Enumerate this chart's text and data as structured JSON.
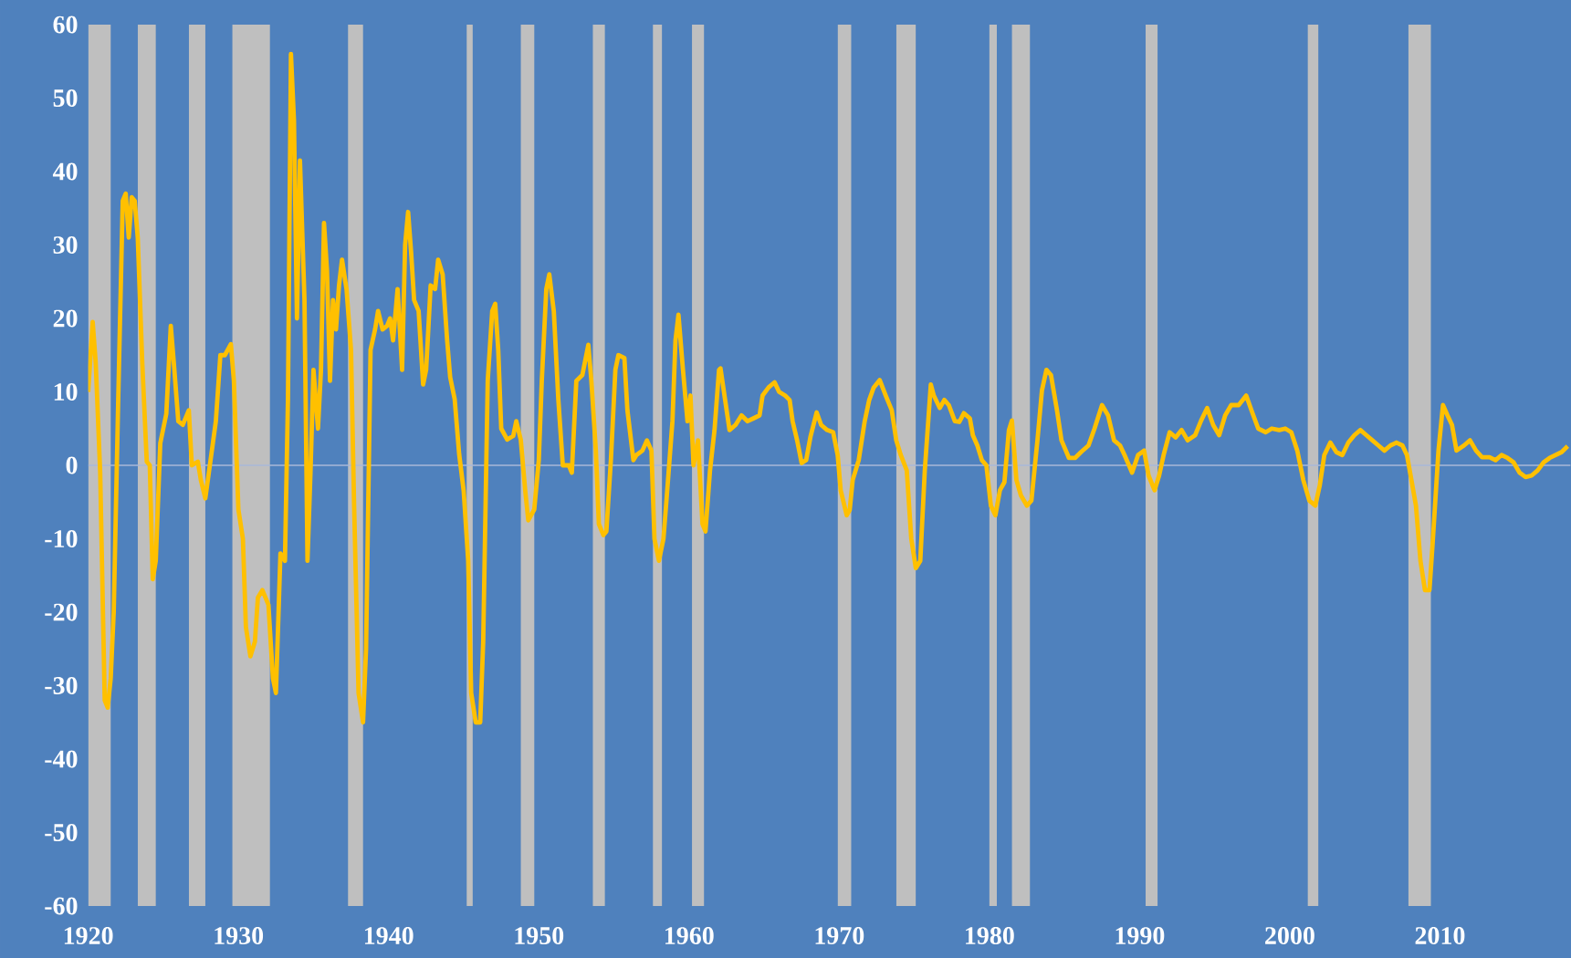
{
  "chart_data": {
    "type": "line",
    "x": [
      1920.0,
      1920.3,
      1920.5,
      1920.8,
      1921.1,
      1921.3,
      1921.5,
      1921.7,
      1922.0,
      1922.3,
      1922.5,
      1922.7,
      1922.9,
      1923.1,
      1923.3,
      1923.6,
      1923.9,
      1924.1,
      1924.3,
      1924.5,
      1924.8,
      1925.2,
      1925.5,
      1925.7,
      1926.0,
      1926.3,
      1926.7,
      1926.9,
      1927.3,
      1927.5,
      1927.8,
      1928.1,
      1928.5,
      1928.8,
      1929.1,
      1929.5,
      1929.7,
      1930.0,
      1930.3,
      1930.5,
      1930.8,
      1931.1,
      1931.3,
      1931.6,
      1932.0,
      1932.3,
      1932.5,
      1932.8,
      1933.1,
      1933.3,
      1933.5,
      1933.7,
      1933.9,
      1934.1,
      1934.4,
      1934.6,
      1934.8,
      1935.0,
      1935.3,
      1935.5,
      1935.7,
      1935.9,
      1936.1,
      1936.3,
      1936.5,
      1936.7,
      1936.9,
      1937.2,
      1937.5,
      1937.7,
      1938.0,
      1938.3,
      1938.5,
      1938.8,
      1939.1,
      1939.3,
      1939.6,
      1939.9,
      1940.1,
      1940.3,
      1940.6,
      1940.9,
      1941.1,
      1941.3,
      1941.5,
      1941.7,
      1942.0,
      1942.3,
      1942.5,
      1942.8,
      1943.1,
      1943.3,
      1943.6,
      1943.9,
      1944.1,
      1944.4,
      1944.7,
      1945.0,
      1945.3,
      1945.5,
      1945.8,
      1946.1,
      1946.3,
      1946.6,
      1946.9,
      1947.1,
      1947.3,
      1947.5,
      1947.9,
      1948.3,
      1948.5,
      1948.8,
      1949.1,
      1949.3,
      1949.7,
      1950.0,
      1950.2,
      1950.5,
      1950.7,
      1951.0,
      1951.3,
      1951.6,
      1952.0,
      1952.2,
      1952.5,
      1952.9,
      1953.3,
      1953.5,
      1953.8,
      1954.0,
      1954.3,
      1954.5,
      1954.8,
      1955.1,
      1955.3,
      1955.7,
      1955.9,
      1956.3,
      1956.5,
      1956.9,
      1957.2,
      1957.5,
      1957.7,
      1958.0,
      1958.3,
      1958.5,
      1958.9,
      1959.1,
      1959.3,
      1959.6,
      1959.9,
      1960.1,
      1960.3,
      1960.6,
      1960.9,
      1961.1,
      1961.4,
      1961.7,
      1962.0,
      1962.1,
      1962.4,
      1962.7,
      1963.1,
      1963.5,
      1963.9,
      1964.3,
      1964.7,
      1964.9,
      1965.3,
      1965.7,
      1966.0,
      1966.4,
      1966.7,
      1966.9,
      1967.2,
      1967.5,
      1967.8,
      1968.1,
      1968.5,
      1968.8,
      1969.2,
      1969.6,
      1969.9,
      1970.1,
      1970.5,
      1970.7,
      1970.9,
      1971.3,
      1971.7,
      1972.0,
      1972.3,
      1972.7,
      1973.1,
      1973.5,
      1973.8,
      1974.1,
      1974.5,
      1974.8,
      1975.1,
      1975.4,
      1975.7,
      1976.1,
      1976.3,
      1976.7,
      1977.0,
      1977.3,
      1977.7,
      1978.0,
      1978.3,
      1978.7,
      1978.9,
      1979.2,
      1979.5,
      1979.8,
      1980.1,
      1980.4,
      1980.7,
      1981.0,
      1981.3,
      1981.5,
      1981.8,
      1982.1,
      1982.5,
      1982.8,
      1983.2,
      1983.5,
      1983.8,
      1984.1,
      1984.5,
      1984.8,
      1985.3,
      1985.7,
      1986.1,
      1986.6,
      1987.0,
      1987.5,
      1987.9,
      1988.3,
      1988.7,
      1989.0,
      1989.5,
      1989.9,
      1990.3,
      1990.6,
      1991.0,
      1991.3,
      1991.6,
      1992.0,
      1992.4,
      1992.8,
      1993.2,
      1993.7,
      1994.1,
      1994.5,
      1994.9,
      1995.3,
      1995.7,
      1996.1,
      1996.6,
      1997.1,
      1997.5,
      1997.9,
      1998.4,
      1998.8,
      1999.3,
      1999.7,
      2000.1,
      2000.5,
      2000.9,
      2001.3,
      2001.7,
      2002.0,
      2002.3,
      2002.7,
      2003.1,
      2003.5,
      2003.9,
      2004.3,
      2004.7,
      2005.1,
      2005.5,
      2005.9,
      2006.3,
      2006.7,
      2007.1,
      2007.5,
      2007.8,
      2008.1,
      2008.4,
      2008.7,
      2009.0,
      2009.3,
      2009.5,
      2009.9,
      2010.2,
      2010.5,
      2010.8,
      2011.1,
      2011.6,
      2012.0,
      2012.4,
      2012.8,
      2013.3,
      2013.7,
      2014.1,
      2014.5,
      2014.9,
      2015.3,
      2015.7,
      2016.1,
      2016.5,
      2016.9,
      2017.3,
      2017.7,
      2018.1,
      2018.5
    ],
    "series": [
      {
        "color": "#ffc000",
        "values": [
          10,
          19.5,
          14,
          -1,
          -32,
          -33,
          -29,
          -20,
          9,
          36,
          37,
          31,
          36.5,
          36,
          31,
          14,
          0.5,
          0,
          -15.5,
          -13,
          3,
          7,
          19,
          14,
          6,
          5.5,
          7.5,
          0,
          0.5,
          -2,
          -4.5,
          0,
          6,
          15,
          15,
          16.5,
          11.5,
          -6,
          -10,
          -22,
          -26,
          -24,
          -18,
          -17,
          -19,
          -29,
          -31,
          -12,
          -13,
          9,
          56,
          47,
          20,
          41.5,
          22.5,
          -13,
          -1,
          13,
          5,
          13,
          33,
          26.5,
          11.5,
          22.5,
          18.5,
          24.5,
          28,
          24,
          15.7,
          -5,
          -31,
          -35,
          -25,
          15.7,
          18.5,
          21,
          18.5,
          19,
          20,
          17,
          24,
          13,
          30,
          34.5,
          29,
          22.5,
          21,
          11,
          13,
          24.5,
          24,
          28,
          26,
          17,
          12,
          9,
          1.5,
          -3.5,
          -13,
          -31,
          -35,
          -35,
          -24,
          11.5,
          21,
          22,
          15.7,
          5,
          3.5,
          4,
          6,
          3.5,
          -3.5,
          -7.5,
          -6,
          0.7,
          11.5,
          24,
          26,
          21,
          9,
          0,
          0,
          -1,
          11.5,
          12.3,
          16.4,
          11.5,
          2,
          -8,
          -9.5,
          -9,
          0.7,
          13,
          15,
          14.6,
          7.5,
          0.7,
          1.4,
          2,
          3.4,
          2,
          -10,
          -13,
          -10,
          -4.8,
          6,
          17,
          20.5,
          13,
          6,
          9.5,
          0,
          3.4,
          -8,
          -9,
          -0.7,
          4.8,
          13,
          13.2,
          9,
          4.8,
          5.5,
          6.8,
          6,
          6.4,
          6.8,
          9.5,
          10.6,
          11.3,
          10,
          9.5,
          8.9,
          6,
          3.4,
          0.3,
          0.7,
          4,
          7.2,
          5.5,
          4.8,
          4.5,
          1.4,
          -3.4,
          -6.8,
          -6.1,
          -2,
          0.7,
          6,
          8.9,
          10.6,
          11.6,
          9.5,
          7.5,
          3.4,
          1.4,
          -0.7,
          -10,
          -14,
          -13,
          -0.7,
          11,
          9.5,
          7.8,
          8.9,
          8.2,
          6,
          5.9,
          7.1,
          6.4,
          4.1,
          2.7,
          0.7,
          0,
          -5.5,
          -6.8,
          -3.4,
          -2.3,
          4.8,
          6.1,
          -2,
          -4.1,
          -5.5,
          -4.8,
          3.4,
          10.2,
          13,
          12.3,
          7.5,
          3.4,
          1,
          1,
          1.8,
          2.7,
          5,
          8.2,
          6.8,
          3.4,
          2.7,
          1.4,
          -1,
          1.4,
          2,
          -1.4,
          -3.4,
          -1.4,
          1.4,
          4.5,
          3.8,
          4.8,
          3.4,
          4.1,
          6.1,
          7.8,
          5.5,
          4.1,
          6.8,
          8.2,
          8.2,
          9.5,
          7.2,
          5,
          4.5,
          5,
          4.8,
          5,
          4.5,
          2,
          -2,
          -4.8,
          -5.5,
          -2.7,
          1.4,
          3.1,
          1.8,
          1.4,
          3.1,
          4.1,
          4.8,
          4.1,
          3.4,
          2.7,
          2,
          2.7,
          3.1,
          2.7,
          1.4,
          -2,
          -5.5,
          -13,
          -17,
          -17,
          -11,
          2,
          8.2,
          6.8,
          5.5,
          2,
          2.7,
          3.4,
          2,
          1.1,
          1.1,
          0.7,
          1.4,
          1,
          0.4,
          -1,
          -1.6,
          -1.4,
          -0.7,
          0.4,
          1,
          1.4,
          1.8,
          2.6
        ]
      }
    ],
    "xlim": [
      1920,
      2018.7
    ],
    "ylim": [
      -60,
      60
    ],
    "xticks": [
      1920,
      1930,
      1940,
      1950,
      1960,
      1970,
      1980,
      1990,
      2000,
      2010
    ],
    "yticks": [
      -60,
      -50,
      -40,
      -30,
      -20,
      -10,
      0,
      10,
      20,
      30,
      40,
      50,
      60
    ],
    "marker": "none",
    "line_style": "solid",
    "ref_lines": [
      {
        "axis": "y",
        "value": 0,
        "color": "#a9b8d8"
      }
    ],
    "bands": [
      {
        "axis": "x",
        "from": 1920.0,
        "to": 1921.5,
        "color": "#bfbfbf"
      },
      {
        "axis": "x",
        "from": 1923.3,
        "to": 1924.5,
        "color": "#bfbfbf"
      },
      {
        "axis": "x",
        "from": 1926.7,
        "to": 1927.8,
        "color": "#bfbfbf"
      },
      {
        "axis": "x",
        "from": 1929.6,
        "to": 1932.1,
        "color": "#bfbfbf"
      },
      {
        "axis": "x",
        "from": 1937.3,
        "to": 1938.3,
        "color": "#bfbfbf"
      },
      {
        "axis": "x",
        "from": 1945.2,
        "to": 1945.6,
        "color": "#bfbfbf"
      },
      {
        "axis": "x",
        "from": 1948.8,
        "to": 1949.7,
        "color": "#bfbfbf"
      },
      {
        "axis": "x",
        "from": 1953.6,
        "to": 1954.4,
        "color": "#bfbfbf"
      },
      {
        "axis": "x",
        "from": 1957.6,
        "to": 1958.2,
        "color": "#bfbfbf"
      },
      {
        "axis": "x",
        "from": 1960.2,
        "to": 1961.0,
        "color": "#bfbfbf"
      },
      {
        "axis": "x",
        "from": 1969.9,
        "to": 1970.8,
        "color": "#bfbfbf"
      },
      {
        "axis": "x",
        "from": 1973.8,
        "to": 1975.1,
        "color": "#bfbfbf"
      },
      {
        "axis": "x",
        "from": 1980.0,
        "to": 1980.5,
        "color": "#bfbfbf"
      },
      {
        "axis": "x",
        "from": 1981.5,
        "to": 1982.7,
        "color": "#bfbfbf"
      },
      {
        "axis": "x",
        "from": 1990.4,
        "to": 1991.2,
        "color": "#bfbfbf"
      },
      {
        "axis": "x",
        "from": 2001.2,
        "to": 2001.9,
        "color": "#bfbfbf"
      },
      {
        "axis": "x",
        "from": 2007.9,
        "to": 2009.4,
        "color": "#bfbfbf"
      }
    ]
  }
}
